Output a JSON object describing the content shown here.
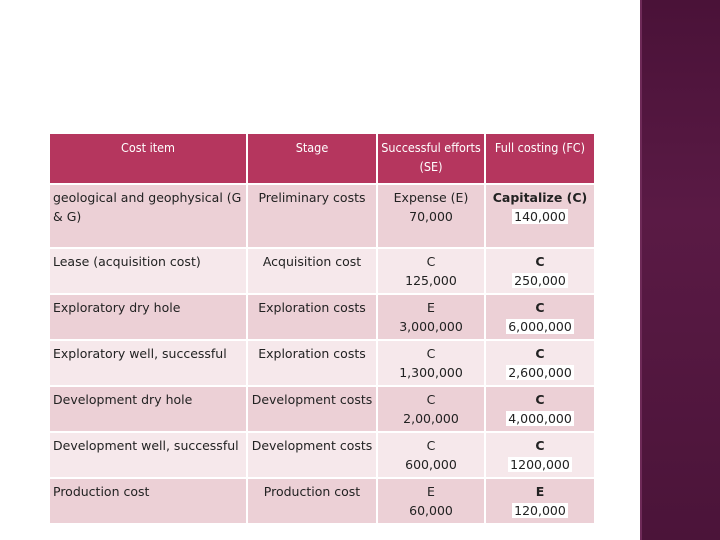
{
  "table": {
    "headers": [
      "Cost item",
      "Stage",
      "Successful efforts (SE)",
      "Full costing (FC)"
    ],
    "rows": [
      {
        "item": "geological and geophysical (G & G)",
        "stage": "Preliminary costs",
        "se_code": "Expense (E)",
        "se_value": "70,000",
        "fc_code": "Capitalize (C)",
        "fc_value": "140,000"
      },
      {
        "item": "Lease (acquisition cost)",
        "stage": "Acquisition cost",
        "se_code": "C",
        "se_value": "125,000",
        "fc_code": "C",
        "fc_value": "250,000"
      },
      {
        "item": "Exploratory dry hole",
        "stage": "Exploration costs",
        "se_code": "E",
        "se_value": "3,000,000",
        "fc_code": "C",
        "fc_value": "6,000,000"
      },
      {
        "item": "Exploratory well, successful",
        "stage": "Exploration costs",
        "se_code": "C",
        "se_value": "1,300,000",
        "fc_code": "C",
        "fc_value": "2,600,000"
      },
      {
        "item": "Development dry hole",
        "stage": "Development costs",
        "se_code": "C",
        "se_value": "2,00,000",
        "fc_code": "C",
        "fc_value": "4,000,000"
      },
      {
        "item": "Development well, successful",
        "stage": "Development costs",
        "se_code": "C",
        "se_value": "600,000",
        "fc_code": "C",
        "fc_value": "1200,000"
      },
      {
        "item": "Production cost",
        "stage": "Production cost",
        "se_code": "E",
        "se_value": "60,000",
        "fc_code": "E",
        "fc_value": "120,000"
      }
    ]
  },
  "colors": {
    "header_bg": "#b5365e",
    "row_odd_bg": "#ecd0d6",
    "row_even_bg": "#f6e8eb",
    "side_band": "#4a1238"
  }
}
